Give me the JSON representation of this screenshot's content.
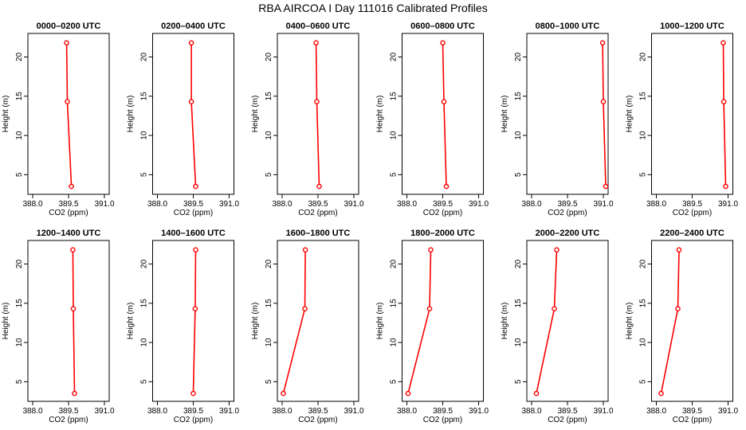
{
  "page_title": "RBA AIRCOA I  Day 111016  Calibrated Profiles",
  "chart_data": {
    "type": "line",
    "title": "RBA AIRCOA I  Day 111016  Calibrated Profiles",
    "xlabel": "CO2 (ppm)",
    "ylabel": "Height (m)",
    "xlim": [
      387.8,
      391.2
    ],
    "ylim": [
      2.5,
      23.0
    ],
    "x_ticks": [
      "388.0",
      "389.5",
      "391.0"
    ],
    "y_ticks": [
      "5",
      "10",
      "15",
      "20"
    ],
    "heights": [
      3.5,
      14.3,
      21.8
    ],
    "grid": false,
    "series_color": "#ff0000",
    "panels": [
      {
        "title": "0000–0200 UTC",
        "co2": [
          389.62,
          389.45,
          389.42
        ]
      },
      {
        "title": "0200–0400 UTC",
        "co2": [
          389.6,
          389.42,
          389.42
        ]
      },
      {
        "title": "0400–0600 UTC",
        "co2": [
          389.55,
          389.45,
          389.42
        ]
      },
      {
        "title": "0600–0800 UTC",
        "co2": [
          389.65,
          389.55,
          389.5
        ]
      },
      {
        "title": "0800–1000 UTC",
        "co2": [
          391.1,
          391.0,
          390.97
        ]
      },
      {
        "title": "1000–1200 UTC",
        "co2": [
          390.9,
          390.82,
          390.8
        ]
      },
      {
        "title": "1200–1400 UTC",
        "co2": [
          389.75,
          389.7,
          389.68
        ]
      },
      {
        "title": "1400–1600 UTC",
        "co2": [
          389.5,
          389.58,
          389.6
        ]
      },
      {
        "title": "1600–1800 UTC",
        "co2": [
          388.05,
          388.95,
          388.97
        ]
      },
      {
        "title": "1800–2000 UTC",
        "co2": [
          388.05,
          388.95,
          389.0
        ]
      },
      {
        "title": "2000–2200 UTC",
        "co2": [
          388.2,
          388.95,
          389.05
        ]
      },
      {
        "title": "2200–2400 UTC",
        "co2": [
          388.2,
          388.9,
          388.95
        ]
      }
    ]
  }
}
